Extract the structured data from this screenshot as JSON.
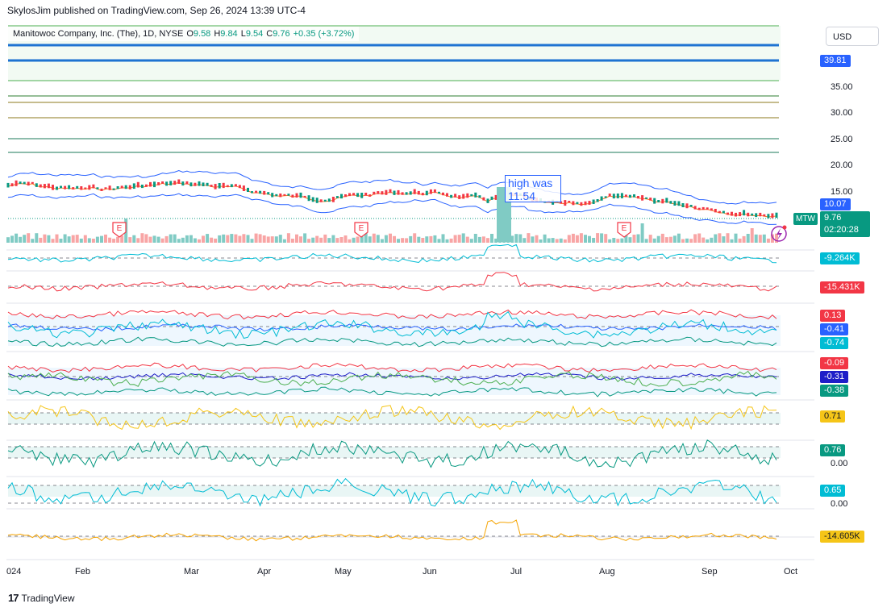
{
  "header": {
    "publish_line": "SkylosJim published on TradingView.com, Sep 26, 2024 13:39 UTC-4"
  },
  "symbol": {
    "name": "Manitowoc Company, Inc. (The), 1D, NYSE",
    "open_label": "O",
    "open": "9.58",
    "high_label": "H",
    "high": "9.84",
    "low_label": "L",
    "low": "9.54",
    "close_label": "C",
    "close": "9.76",
    "change": "+0.35 (+3.72%)",
    "ticker": "MTW"
  },
  "toolbar": {
    "currency": "USD"
  },
  "price_axis": {
    "ticks": [
      "35.00",
      "30.00",
      "25.00",
      "20.00",
      "15.00"
    ],
    "badge_top": "39.81",
    "badge_upper_band": "10.07",
    "last_price": "9.76",
    "countdown": "02:20:28"
  },
  "annotation": {
    "line1": "high was",
    "line2": "11.54"
  },
  "earnings_marker": "E",
  "panes": [
    {
      "name": "volume-oscillator",
      "badge": "-9.264K",
      "badge_color": "#00bcd4"
    },
    {
      "name": "flow",
      "badge": "-15.431K",
      "badge_color": "#f23645"
    },
    {
      "name": "band-1",
      "badges": [
        {
          "text": "0.13",
          "color": "#f23645"
        },
        {
          "text": "-0.41",
          "color": "#2962ff"
        },
        {
          "text": "-0.74",
          "color": "#00bcd4"
        }
      ]
    },
    {
      "name": "band-2",
      "badges": [
        {
          "text": "-0.09",
          "color": "#f23645"
        },
        {
          "text": "-0.31",
          "color": "#1e1ec8"
        },
        {
          "text": "-0.38",
          "color": "#089981"
        }
      ]
    },
    {
      "name": "osc-yellow",
      "badge": "0.71",
      "badge_color": "#f5c518",
      "badge_text_color": "#131722"
    },
    {
      "name": "osc-green",
      "badge": "0.76",
      "badge_color": "#089981",
      "zero": "0.00"
    },
    {
      "name": "osc-cyan",
      "badge": "0.65",
      "badge_color": "#00bcd4",
      "zero": "0.00"
    },
    {
      "name": "osc-orange",
      "badge": "-14.605K",
      "badge_color": "#f5c518",
      "badge_text_color": "#131722"
    }
  ],
  "time_axis": [
    "024",
    "Feb",
    "Mar",
    "Apr",
    "May",
    "Jun",
    "Jul",
    "Aug",
    "Sep",
    "Oct"
  ],
  "footer": {
    "logo_mark": "17",
    "logo_text": "TradingView"
  },
  "colors": {
    "up": "#089981",
    "down": "#f23645",
    "bands": "#2962ff",
    "grid_line": "#131722"
  }
}
